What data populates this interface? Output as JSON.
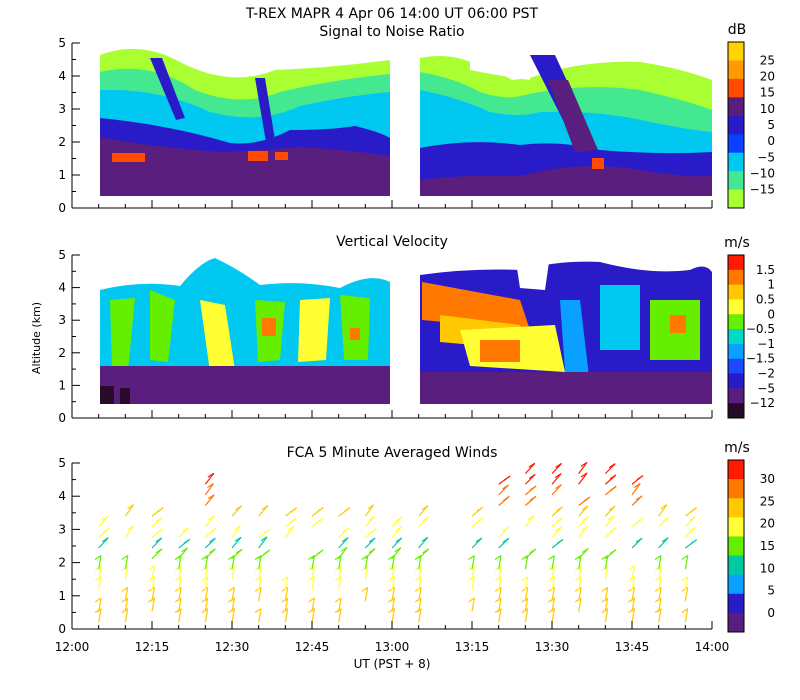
{
  "figure": {
    "title": "T-REX   MAPR   4 Apr 06   14:00 UT   06:00   PST"
  },
  "chart_data": [
    {
      "type": "heatmap",
      "title": "Signal to Noise Ratio",
      "ylabel": "",
      "ylim": [
        0,
        5
      ],
      "yticks": [
        "0",
        "1",
        "2",
        "3",
        "4",
        "5"
      ],
      "colorbar": {
        "unit": "dB",
        "labels": [
          "25",
          "20",
          "15",
          "10",
          "5",
          "0",
          "−5",
          "−10",
          "−15"
        ],
        "colors": [
          "#ffd400",
          "#ff9a00",
          "#ff4a00",
          "#5a1f7e",
          "#2a1bc8",
          "#0a40ff",
          "#00c8f0",
          "#44e890",
          "#aaff33"
        ]
      }
    },
    {
      "type": "heatmap",
      "title": "Vertical Velocity",
      "ylabel": "Altitude (km)",
      "ylim": [
        0,
        5
      ],
      "yticks": [
        "0",
        "1",
        "2",
        "3",
        "4",
        "5"
      ],
      "colorbar": {
        "unit": "m/s",
        "labels": [
          "1.5",
          "1",
          "0.5",
          "0",
          "−0.5",
          "−1",
          "−1.5",
          "−2",
          "−5",
          "−12"
        ],
        "colors": [
          "#ff1a00",
          "#ff7800",
          "#ffc800",
          "#ffff33",
          "#66ee00",
          "#00d8c8",
          "#0aa0ff",
          "#1c48ff",
          "#2a1bc8",
          "#5a1f7e",
          "#2a0a2a"
        ]
      }
    },
    {
      "type": "scatter",
      "title": "FCA 5 Minute Averaged Winds",
      "xlabel": "UT  (PST + 8)",
      "ylim": [
        0,
        5
      ],
      "yticks": [
        "0",
        "1",
        "2",
        "3",
        "4",
        "5"
      ],
      "xticks": [
        "12:00",
        "12:15",
        "12:30",
        "12:45",
        "13:00",
        "13:15",
        "13:30",
        "13:45",
        "14:00"
      ],
      "colorbar": {
        "unit": "m/s",
        "labels": [
          "30",
          "25",
          "20",
          "15",
          "10",
          "5",
          "0"
        ],
        "colors": [
          "#ff1a00",
          "#ff7800",
          "#ffc800",
          "#ffff33",
          "#66ee00",
          "#00c8a0",
          "#0aa0ff",
          "#2a1bc8",
          "#5a1f7e"
        ]
      }
    }
  ]
}
